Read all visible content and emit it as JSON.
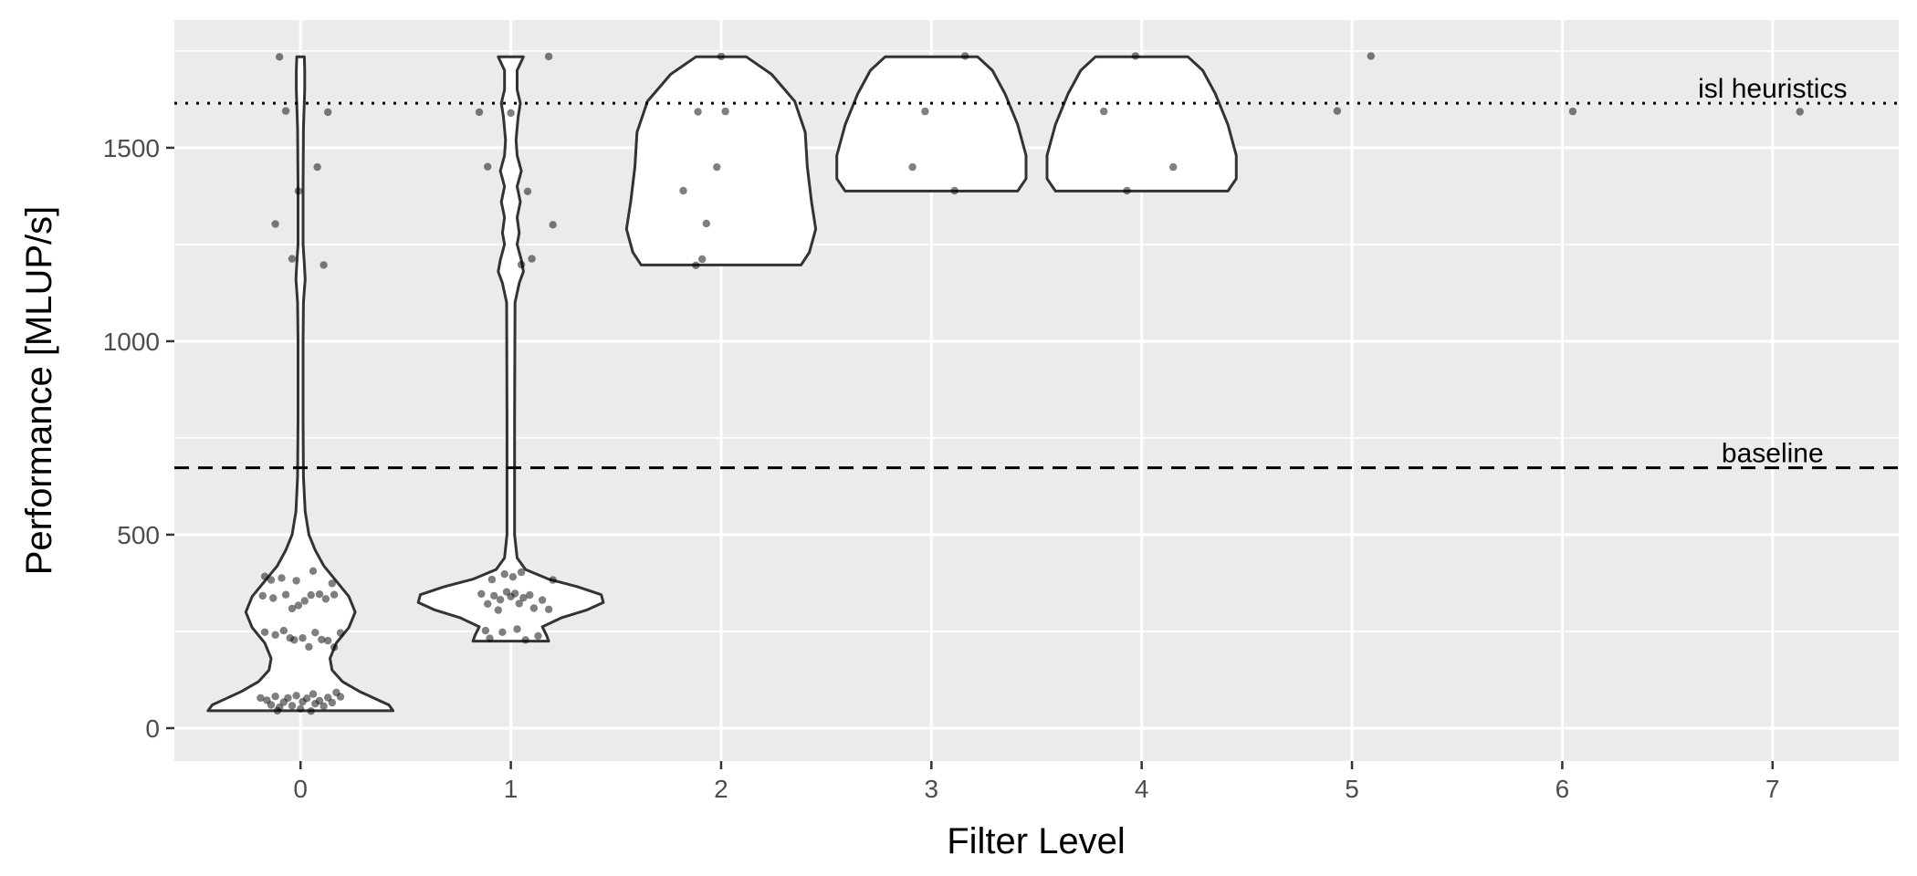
{
  "chart_data": {
    "type": "violin",
    "xlabel": "Filter Level",
    "ylabel": "Performance [MLUP/s]",
    "categories": [
      "0",
      "1",
      "2",
      "3",
      "4",
      "5",
      "6",
      "7"
    ],
    "xlim": [
      -0.6,
      7.6
    ],
    "ylim": [
      -85,
      1830
    ],
    "y_ticks": [
      0,
      500,
      1000,
      1500
    ],
    "grid": true,
    "reference_lines": [
      {
        "label": "isl heuristics",
        "value": 1615,
        "style": "dotted"
      },
      {
        "label": "baseline",
        "value": 673,
        "style": "dashed"
      }
    ],
    "violins": [
      {
        "x": 0,
        "profile": [
          [
            45,
            0.44
          ],
          [
            60,
            0.42
          ],
          [
            75,
            0.36
          ],
          [
            95,
            0.28
          ],
          [
            120,
            0.2
          ],
          [
            150,
            0.15
          ],
          [
            180,
            0.14
          ],
          [
            220,
            0.17
          ],
          [
            260,
            0.23
          ],
          [
            300,
            0.26
          ],
          [
            340,
            0.23
          ],
          [
            380,
            0.17
          ],
          [
            420,
            0.11
          ],
          [
            460,
            0.07
          ],
          [
            500,
            0.04
          ],
          [
            560,
            0.022
          ],
          [
            650,
            0.014
          ],
          [
            800,
            0.012
          ],
          [
            1000,
            0.012
          ],
          [
            1100,
            0.014
          ],
          [
            1160,
            0.022
          ],
          [
            1200,
            0.018
          ],
          [
            1250,
            0.012
          ],
          [
            1400,
            0.012
          ],
          [
            1550,
            0.014
          ],
          [
            1650,
            0.02
          ],
          [
            1700,
            0.02
          ],
          [
            1735,
            0.018
          ]
        ]
      },
      {
        "x": 1,
        "profile": [
          [
            225,
            0.18
          ],
          [
            240,
            0.17
          ],
          [
            262,
            0.15
          ],
          [
            285,
            0.24
          ],
          [
            305,
            0.36
          ],
          [
            325,
            0.44
          ],
          [
            345,
            0.43
          ],
          [
            365,
            0.32
          ],
          [
            385,
            0.18
          ],
          [
            410,
            0.07
          ],
          [
            440,
            0.03
          ],
          [
            500,
            0.018
          ],
          [
            800,
            0.018
          ],
          [
            1100,
            0.02
          ],
          [
            1150,
            0.04
          ],
          [
            1180,
            0.06
          ],
          [
            1210,
            0.05
          ],
          [
            1250,
            0.03
          ],
          [
            1280,
            0.04
          ],
          [
            1320,
            0.03
          ],
          [
            1360,
            0.045
          ],
          [
            1400,
            0.03
          ],
          [
            1440,
            0.05
          ],
          [
            1480,
            0.03
          ],
          [
            1520,
            0.025
          ],
          [
            1580,
            0.035
          ],
          [
            1615,
            0.045
          ],
          [
            1650,
            0.03
          ],
          [
            1700,
            0.03
          ],
          [
            1735,
            0.06
          ]
        ]
      },
      {
        "x": 2,
        "profile": [
          [
            1197,
            0.38
          ],
          [
            1230,
            0.42
          ],
          [
            1290,
            0.45
          ],
          [
            1360,
            0.43
          ],
          [
            1450,
            0.41
          ],
          [
            1540,
            0.4
          ],
          [
            1620,
            0.35
          ],
          [
            1690,
            0.24
          ],
          [
            1735,
            0.12
          ]
        ]
      },
      {
        "x": 3,
        "profile": [
          [
            1388,
            0.41
          ],
          [
            1420,
            0.45
          ],
          [
            1480,
            0.45
          ],
          [
            1560,
            0.41
          ],
          [
            1640,
            0.35
          ],
          [
            1700,
            0.29
          ],
          [
            1735,
            0.22
          ]
        ]
      },
      {
        "x": 4,
        "profile": [
          [
            1388,
            0.41
          ],
          [
            1420,
            0.45
          ],
          [
            1480,
            0.45
          ],
          [
            1560,
            0.41
          ],
          [
            1640,
            0.35
          ],
          [
            1700,
            0.29
          ],
          [
            1735,
            0.22
          ]
        ]
      }
    ],
    "points": [
      {
        "x": -0.1,
        "y": 1735
      },
      {
        "x": -0.07,
        "y": 1595
      },
      {
        "x": 0.13,
        "y": 1592
      },
      {
        "x": 0.08,
        "y": 1450
      },
      {
        "x": -0.01,
        "y": 1388
      },
      {
        "x": -0.12,
        "y": 1303
      },
      {
        "x": -0.04,
        "y": 1213
      },
      {
        "x": 0.11,
        "y": 1197
      },
      {
        "x": -0.17,
        "y": 392
      },
      {
        "x": -0.14,
        "y": 383
      },
      {
        "x": -0.09,
        "y": 388
      },
      {
        "x": -0.02,
        "y": 381
      },
      {
        "x": 0.06,
        "y": 406
      },
      {
        "x": 0.15,
        "y": 374
      },
      {
        "x": -0.18,
        "y": 342
      },
      {
        "x": -0.13,
        "y": 336
      },
      {
        "x": -0.07,
        "y": 345
      },
      {
        "x": -0.04,
        "y": 309
      },
      {
        "x": -0.01,
        "y": 317
      },
      {
        "x": 0.02,
        "y": 329
      },
      {
        "x": 0.05,
        "y": 344
      },
      {
        "x": 0.09,
        "y": 346
      },
      {
        "x": 0.12,
        "y": 334
      },
      {
        "x": 0.16,
        "y": 345
      },
      {
        "x": -0.17,
        "y": 248
      },
      {
        "x": -0.12,
        "y": 241
      },
      {
        "x": -0.08,
        "y": 252
      },
      {
        "x": -0.05,
        "y": 233
      },
      {
        "x": -0.03,
        "y": 228
      },
      {
        "x": 0.01,
        "y": 233
      },
      {
        "x": 0.04,
        "y": 210
      },
      {
        "x": 0.07,
        "y": 247
      },
      {
        "x": 0.1,
        "y": 229
      },
      {
        "x": 0.13,
        "y": 226
      },
      {
        "x": 0.16,
        "y": 209
      },
      {
        "x": 0.19,
        "y": 246
      },
      {
        "x": -0.19,
        "y": 78
      },
      {
        "x": -0.16,
        "y": 72
      },
      {
        "x": -0.14,
        "y": 60
      },
      {
        "x": -0.12,
        "y": 82
      },
      {
        "x": -0.1,
        "y": 54
      },
      {
        "x": -0.08,
        "y": 67
      },
      {
        "x": -0.06,
        "y": 78
      },
      {
        "x": -0.04,
        "y": 58
      },
      {
        "x": -0.02,
        "y": 84
      },
      {
        "x": 0.0,
        "y": 50
      },
      {
        "x": 0.01,
        "y": 68
      },
      {
        "x": 0.03,
        "y": 77
      },
      {
        "x": 0.05,
        "y": 44
      },
      {
        "x": 0.07,
        "y": 63
      },
      {
        "x": 0.09,
        "y": 71
      },
      {
        "x": 0.11,
        "y": 57
      },
      {
        "x": 0.13,
        "y": 79
      },
      {
        "x": 0.15,
        "y": 66
      },
      {
        "x": 0.17,
        "y": 92
      },
      {
        "x": 0.19,
        "y": 81
      },
      {
        "x": -0.11,
        "y": 45
      },
      {
        "x": 0.06,
        "y": 88
      },
      {
        "x": 1.18,
        "y": 1736
      },
      {
        "x": 0.85,
        "y": 1592
      },
      {
        "x": 1.0,
        "y": 1590
      },
      {
        "x": 0.89,
        "y": 1451
      },
      {
        "x": 1.08,
        "y": 1387
      },
      {
        "x": 1.2,
        "y": 1301
      },
      {
        "x": 1.1,
        "y": 1213
      },
      {
        "x": 1.05,
        "y": 1198
      },
      {
        "x": 0.97,
        "y": 398
      },
      {
        "x": 1.01,
        "y": 391
      },
      {
        "x": 1.05,
        "y": 403
      },
      {
        "x": 1.2,
        "y": 383
      },
      {
        "x": 0.91,
        "y": 384
      },
      {
        "x": 0.86,
        "y": 347
      },
      {
        "x": 0.89,
        "y": 321
      },
      {
        "x": 0.92,
        "y": 342
      },
      {
        "x": 0.95,
        "y": 332
      },
      {
        "x": 0.98,
        "y": 352
      },
      {
        "x": 1.0,
        "y": 340
      },
      {
        "x": 1.02,
        "y": 348
      },
      {
        "x": 1.04,
        "y": 322
      },
      {
        "x": 1.06,
        "y": 337
      },
      {
        "x": 1.09,
        "y": 344
      },
      {
        "x": 1.11,
        "y": 310
      },
      {
        "x": 1.15,
        "y": 331
      },
      {
        "x": 1.18,
        "y": 307
      },
      {
        "x": 0.94,
        "y": 305
      },
      {
        "x": 0.88,
        "y": 252
      },
      {
        "x": 0.9,
        "y": 232
      },
      {
        "x": 0.96,
        "y": 248
      },
      {
        "x": 1.03,
        "y": 256
      },
      {
        "x": 1.07,
        "y": 228
      },
      {
        "x": 1.13,
        "y": 238
      },
      {
        "x": 2.0,
        "y": 1736
      },
      {
        "x": 1.89,
        "y": 1593
      },
      {
        "x": 2.02,
        "y": 1594
      },
      {
        "x": 1.98,
        "y": 1450
      },
      {
        "x": 1.82,
        "y": 1389
      },
      {
        "x": 1.93,
        "y": 1304
      },
      {
        "x": 1.91,
        "y": 1212
      },
      {
        "x": 1.88,
        "y": 1196
      },
      {
        "x": 3.16,
        "y": 1737
      },
      {
        "x": 2.97,
        "y": 1594
      },
      {
        "x": 2.91,
        "y": 1450
      },
      {
        "x": 3.11,
        "y": 1389
      },
      {
        "x": 3.97,
        "y": 1737
      },
      {
        "x": 3.82,
        "y": 1594
      },
      {
        "x": 4.15,
        "y": 1450
      },
      {
        "x": 3.93,
        "y": 1389
      },
      {
        "x": 5.09,
        "y": 1737
      },
      {
        "x": 4.93,
        "y": 1595
      },
      {
        "x": 6.05,
        "y": 1594
      },
      {
        "x": 7.13,
        "y": 1593
      }
    ]
  }
}
